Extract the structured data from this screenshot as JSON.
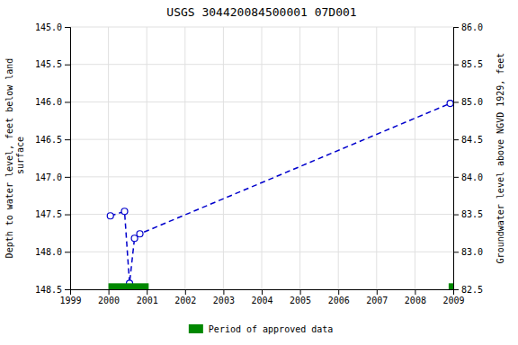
{
  "chart_data": {
    "type": "line",
    "title": "USGS 304420084500001 07D001",
    "ylabel": "Depth to water level, feet below land\n surface",
    "y2label": "Groundwater level above NGVD 1929, feet",
    "xlim": [
      1999,
      2009
    ],
    "xticks": [
      1999,
      2000,
      2001,
      2002,
      2003,
      2004,
      2005,
      2006,
      2007,
      2008,
      2009
    ],
    "ylim": [
      148.5,
      145.0
    ],
    "yticks": [
      {
        "value": 145.0,
        "label": "145.0"
      },
      145.5,
      {
        "value": 146.0,
        "label": "146.0"
      },
      146.5,
      {
        "value": 147.0,
        "label": "147.0"
      },
      147.5,
      {
        "value": 148.0,
        "label": "148.0"
      },
      148.5
    ],
    "y2lim": [
      82.5,
      86.0
    ],
    "y2ticks": [
      82.5,
      {
        "value": 83.0,
        "label": "83.0"
      },
      83.5,
      {
        "value": 84.0,
        "label": "84.0"
      },
      84.5,
      {
        "value": 85.0,
        "label": "85.0"
      },
      85.5,
      {
        "value": 86.0,
        "label": "86.0"
      }
    ],
    "grid": true,
    "legend": "bottom",
    "series": [
      {
        "type": "line",
        "color": "#0000cc",
        "marker": "open-circle",
        "line_style": "dashed",
        "x": [
          2000.05,
          2000.42,
          2000.55,
          2000.68,
          2000.82,
          2008.92
        ],
        "values": [
          147.52,
          147.46,
          148.42,
          147.82,
          147.76,
          146.02
        ]
      },
      {
        "name": "Period of approved data",
        "type": "span",
        "color": "#008800",
        "x_start": [
          2000.0,
          2008.88
        ],
        "x_end": [
          2001.05,
          2009.0
        ],
        "y_bottom": [
          148.42,
          148.42
        ],
        "y_top": [
          148.5,
          148.5
        ]
      }
    ]
  }
}
